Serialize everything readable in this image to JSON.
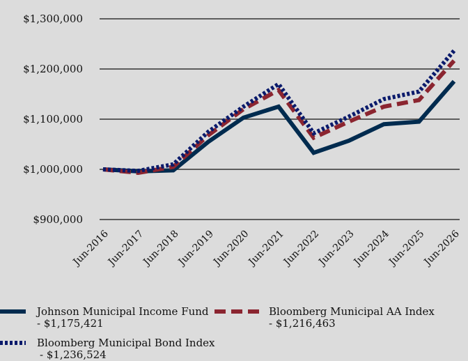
{
  "chart_data": {
    "type": "line",
    "categories": [
      "Jun-2016",
      "Jun-2017",
      "Jun-2018",
      "Jun-2019",
      "Jun-2020",
      "Jun-2021",
      "Jun-2022",
      "Jun-2023",
      "Jun-2024",
      "Jun-2025",
      "Jun-2026"
    ],
    "y_ticks": [
      "$900,000",
      "$1,000,000",
      "$1,100,000",
      "$1,200,000",
      "$1,300,000"
    ],
    "ylim": [
      900000,
      1300000
    ],
    "grid": true,
    "legend_position": "bottom",
    "series": [
      {
        "name": "Johnson Municipal Income Fund",
        "end_value": "- $1,175,421",
        "color": "#002b4f",
        "style": "solid",
        "values": [
          1000000,
          996000,
          998000,
          1055000,
          1103000,
          1125000,
          1033000,
          1057000,
          1090000,
          1095000,
          1175421
        ]
      },
      {
        "name": "Bloomberg Municipal AA Index",
        "end_value": "- $1,216,463",
        "color": "#8b2530",
        "style": "dashed",
        "values": [
          1000000,
          993000,
          1005000,
          1068000,
          1120000,
          1158000,
          1063000,
          1095000,
          1125000,
          1138000,
          1216463
        ]
      },
      {
        "name": "Bloomberg Municipal Bond Index",
        "end_value": "- $1,236,524",
        "color": "#0a1a6b",
        "style": "dotted",
        "values": [
          1000000,
          997000,
          1010000,
          1075000,
          1125000,
          1170000,
          1072000,
          1105000,
          1140000,
          1155000,
          1236524
        ]
      }
    ]
  }
}
